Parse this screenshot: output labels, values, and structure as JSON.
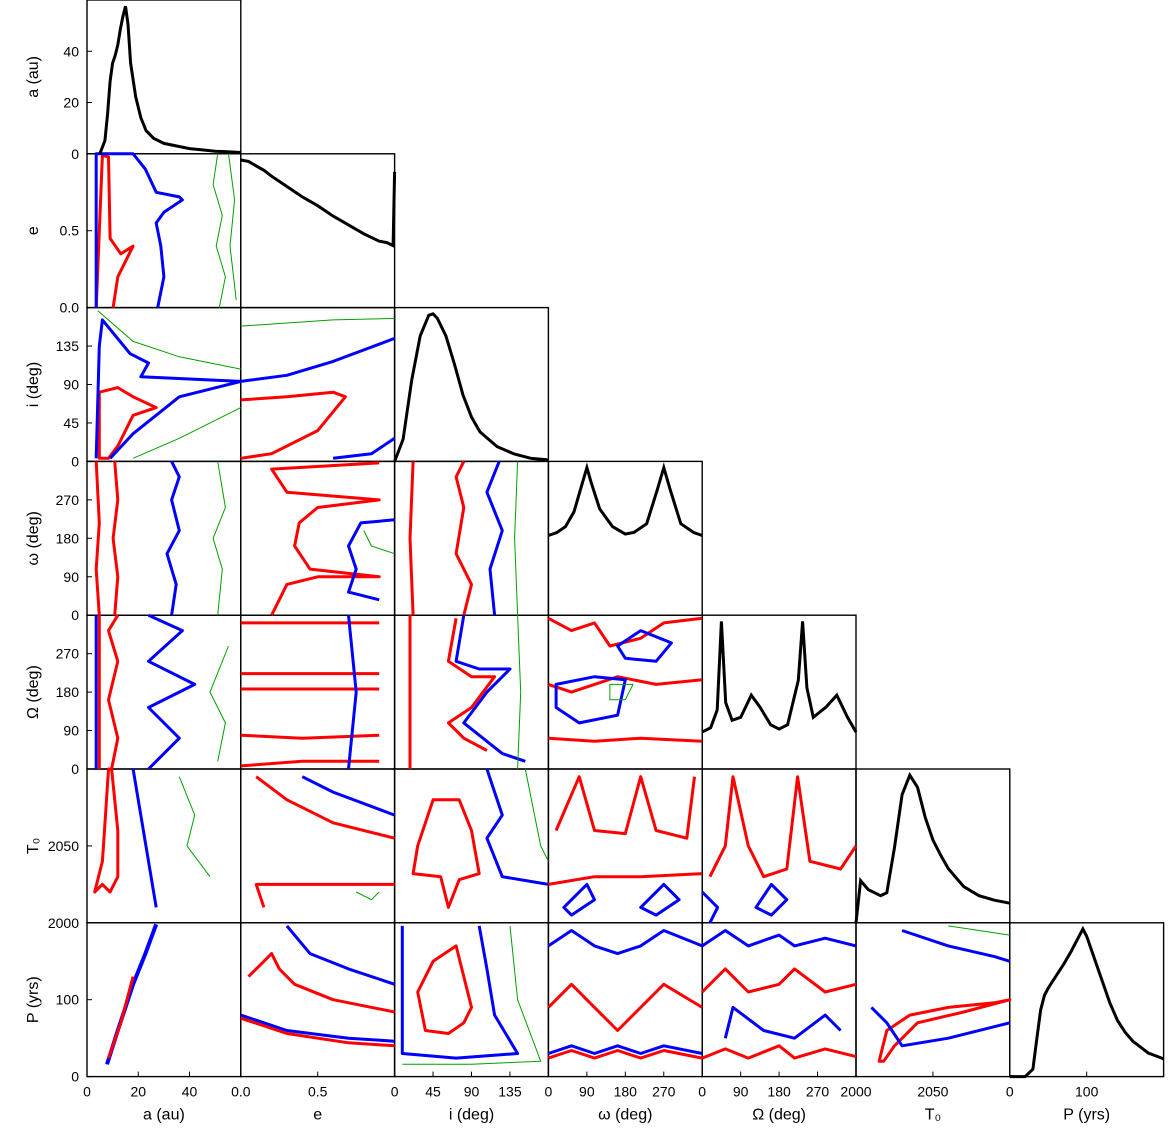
{
  "chart_data": {
    "type": "corner",
    "params": [
      {
        "key": "a",
        "label": "a (au)",
        "range": [
          0,
          60
        ],
        "ticks": [
          0,
          20,
          40
        ],
        "xticks": [
          0,
          20,
          40
        ]
      },
      {
        "key": "e",
        "label": "e",
        "range": [
          0,
          1
        ],
        "ticks": [
          0.0,
          0.5
        ],
        "tick_labels": [
          "0.0",
          "0.5"
        ],
        "xticks": [
          0,
          0.5
        ],
        "xtick_labels": [
          "0.0",
          "0.5"
        ]
      },
      {
        "key": "i",
        "label": "i (deg)",
        "range": [
          0,
          180
        ],
        "ticks": [
          0,
          45,
          90,
          135
        ],
        "xticks": [
          0,
          45,
          90,
          135
        ]
      },
      {
        "key": "w",
        "label": "ω (deg)",
        "range": [
          0,
          360
        ],
        "ticks": [
          0,
          90,
          180,
          270
        ],
        "xticks": [
          0,
          90,
          180,
          270
        ]
      },
      {
        "key": "O",
        "label": "Ω (deg)",
        "range": [
          0,
          360
        ],
        "ticks": [
          0,
          90,
          180,
          270
        ],
        "xticks": [
          0,
          90,
          180,
          270
        ]
      },
      {
        "key": "T0",
        "label": "T₀",
        "range": [
          2000,
          2100
        ],
        "ticks": [
          2000,
          2050
        ],
        "xticks": [
          2000,
          2050
        ]
      },
      {
        "key": "P",
        "label": "P (yrs)",
        "range": [
          0,
          200
        ],
        "ticks": [
          0,
          100
        ],
        "xticks": [
          0,
          100
        ]
      }
    ],
    "contour_colors": {
      "sigma1": "#ff0000",
      "sigma2": "#0000ff",
      "sigma3": "#00a000"
    },
    "histogram_color": "#000000",
    "marginals": [
      {
        "param": "a",
        "x": [
          5,
          7,
          8,
          9,
          10,
          11,
          12,
          13,
          14,
          15,
          16,
          17,
          19,
          21,
          23,
          26,
          30,
          35,
          40,
          45,
          50,
          55,
          60
        ],
        "y": [
          0,
          5,
          15,
          28,
          35,
          38,
          42,
          48,
          53,
          57,
          50,
          35,
          22,
          14,
          9,
          6,
          4,
          3,
          2,
          1.5,
          1,
          0.8,
          0.5
        ]
      },
      {
        "param": "e",
        "x": [
          0,
          0.05,
          0.1,
          0.15,
          0.2,
          0.3,
          0.4,
          0.5,
          0.6,
          0.7,
          0.8,
          0.9,
          0.95,
          0.99,
          1.0
        ],
        "y": [
          1.0,
          0.99,
          0.96,
          0.93,
          0.89,
          0.82,
          0.75,
          0.69,
          0.62,
          0.56,
          0.5,
          0.45,
          0.44,
          0.42,
          0.92
        ]
      },
      {
        "param": "i",
        "x": [
          0,
          10,
          20,
          30,
          40,
          45,
          50,
          60,
          70,
          80,
          90,
          100,
          120,
          140,
          160,
          180
        ],
        "y": [
          0.0,
          0.15,
          0.55,
          0.85,
          0.99,
          1.0,
          0.97,
          0.85,
          0.66,
          0.45,
          0.3,
          0.2,
          0.1,
          0.05,
          0.02,
          0.01
        ]
      },
      {
        "param": "w",
        "x": [
          0,
          20,
          40,
          60,
          75,
          90,
          100,
          120,
          150,
          180,
          200,
          230,
          255,
          270,
          285,
          310,
          340,
          360
        ],
        "y": [
          0.54,
          0.56,
          0.6,
          0.7,
          0.85,
          1.0,
          0.9,
          0.72,
          0.6,
          0.55,
          0.56,
          0.62,
          0.85,
          1.0,
          0.85,
          0.62,
          0.56,
          0.54
        ]
      },
      {
        "param": "O",
        "x": [
          0,
          20,
          35,
          45,
          55,
          70,
          90,
          115,
          135,
          160,
          180,
          200,
          225,
          235,
          245,
          260,
          290,
          315,
          340,
          360
        ],
        "y": [
          0.25,
          0.28,
          0.4,
          1.0,
          0.45,
          0.33,
          0.35,
          0.5,
          0.42,
          0.3,
          0.27,
          0.3,
          0.6,
          1.0,
          0.55,
          0.35,
          0.42,
          0.5,
          0.35,
          0.25
        ]
      },
      {
        "param": "T0",
        "x": [
          2000,
          2003,
          2008,
          2012,
          2016,
          2020,
          2025,
          2030,
          2035,
          2040,
          2045,
          2050,
          2055,
          2060,
          2065,
          2070,
          2080,
          2090,
          2100
        ],
        "y": [
          0.0,
          0.28,
          0.22,
          0.2,
          0.18,
          0.2,
          0.5,
          0.85,
          0.98,
          0.9,
          0.7,
          0.55,
          0.45,
          0.36,
          0.3,
          0.24,
          0.18,
          0.15,
          0.13
        ]
      },
      {
        "param": "P",
        "x": [
          0,
          10,
          20,
          30,
          35,
          40,
          45,
          50,
          60,
          70,
          80,
          90,
          95,
          100,
          110,
          120,
          130,
          140,
          150,
          160,
          170,
          180,
          190,
          200
        ],
        "y": [
          0,
          0,
          0,
          0.05,
          0.25,
          0.45,
          0.55,
          0.6,
          0.68,
          0.76,
          0.85,
          0.95,
          1.0,
          0.95,
          0.8,
          0.65,
          0.5,
          0.38,
          0.3,
          0.24,
          0.2,
          0.16,
          0.14,
          0.12
        ]
      }
    ]
  },
  "axis_labels_x": [
    "a (au)",
    "e",
    "i (deg)",
    "ω (deg)",
    "Ω (deg)",
    "T₀",
    "P (yrs)"
  ],
  "axis_labels_y": [
    "a (au)",
    "e",
    "i (deg)",
    "ω (deg)",
    "Ω (deg)",
    "T₀",
    "P (yrs)"
  ]
}
